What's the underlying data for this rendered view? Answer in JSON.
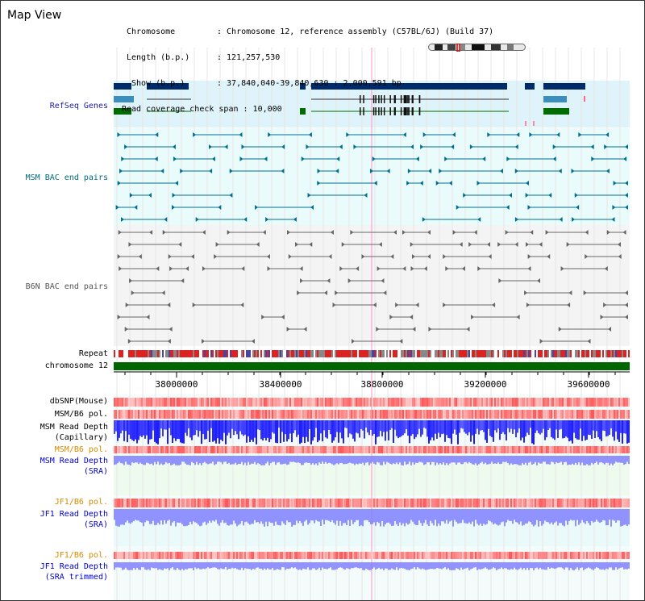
{
  "title": "Map View",
  "header": {
    "chromosome_key": "Chromosome",
    "chromosome_value": ": Chromosome 12, reference assembly (C57BL/6J) (Build 37)",
    "length_key": "Length (b.p.)",
    "length_value": ": 121,257,530",
    "show_key": "Show (b.p.)",
    "show_value": ": 37,840,040-39,840,630 : 2,000,591 bp",
    "read_coverage": "Read coverage check span : 10,000"
  },
  "tracks": {
    "refseq": "RefSeq Genes",
    "msm_bac": "MSM BAC end pairs",
    "b6n_bac": "B6N BAC end pairs",
    "repeat": "Repeat",
    "chromosome": "chromosome 12",
    "dbsnp": "dbSNP(Mouse)",
    "msm_b6_pol_1": "MSM/B6 pol.",
    "msm_depth_cap_1": "MSM Read Depth",
    "msm_depth_cap_2": "(Capillary)",
    "msm_b6_pol_2": "MSM/B6 pol.",
    "msm_depth_sra_1": "MSM Read Depth",
    "msm_depth_sra_2": "(SRA)",
    "jf1_b6_pol_1": "JF1/B6 pol.",
    "jf1_depth_sra_1": "JF1 Read Depth",
    "jf1_depth_sra_2": "(SRA)",
    "jf1_b6_pol_2": "JF1/B6 pol.",
    "jf1_depth_trim_1": "JF1 Read Depth",
    "jf1_depth_trim_2": "(SRA trimmed)"
  },
  "axis": {
    "ticks": [
      "38000000",
      "38400000",
      "38800000",
      "39200000",
      "39600000"
    ]
  },
  "colors": {
    "refseq_band": "#dff3fb",
    "bac_band": "#e9fbfb",
    "b6n_band": "#f4f4f4",
    "gene_dark": "#002b6b",
    "gene_mid": "#3a8fbf",
    "gene_green": "#006b00",
    "msm_pair": "#007090",
    "b6n_pair": "#666666",
    "chromosome_bar": "#006600",
    "depth_blue": "#1a1aff",
    "depth_light": "#8080ff",
    "pol_red": "#ff5555",
    "marker_pink": "#ff99cc"
  }
}
